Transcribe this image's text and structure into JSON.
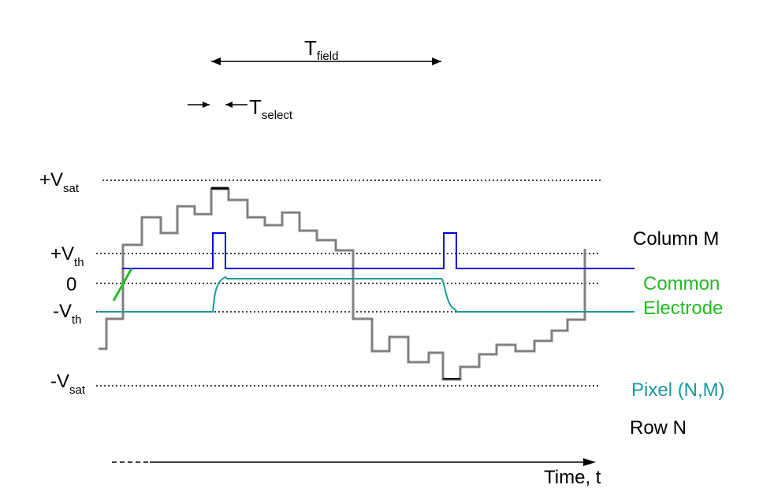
{
  "timing": {
    "t_field": {
      "base": "T",
      "sub": "field"
    },
    "t_select": {
      "base": "T",
      "sub": "select"
    }
  },
  "levels": {
    "vsat_pos": {
      "base": "+V",
      "sub": "sat"
    },
    "vth_pos": {
      "base": "+V",
      "sub": "th"
    },
    "zero": "0",
    "vth_neg": {
      "base": "-V",
      "sub": "th"
    },
    "vsat_neg": {
      "base": "-V",
      "sub": "sat"
    }
  },
  "legend": {
    "column": "Column M",
    "common_line1": "Common",
    "common_line2": "Electrode",
    "pixel": "Pixel (N,M)",
    "row": "Row N"
  },
  "time_axis": {
    "label": "Time, t"
  },
  "colors": {
    "column": "#808080",
    "row": "#0000dd",
    "pixel": "#1a9a9a",
    "common": "#22bb22",
    "text": "#000000",
    "dotted": "#000000"
  }
}
